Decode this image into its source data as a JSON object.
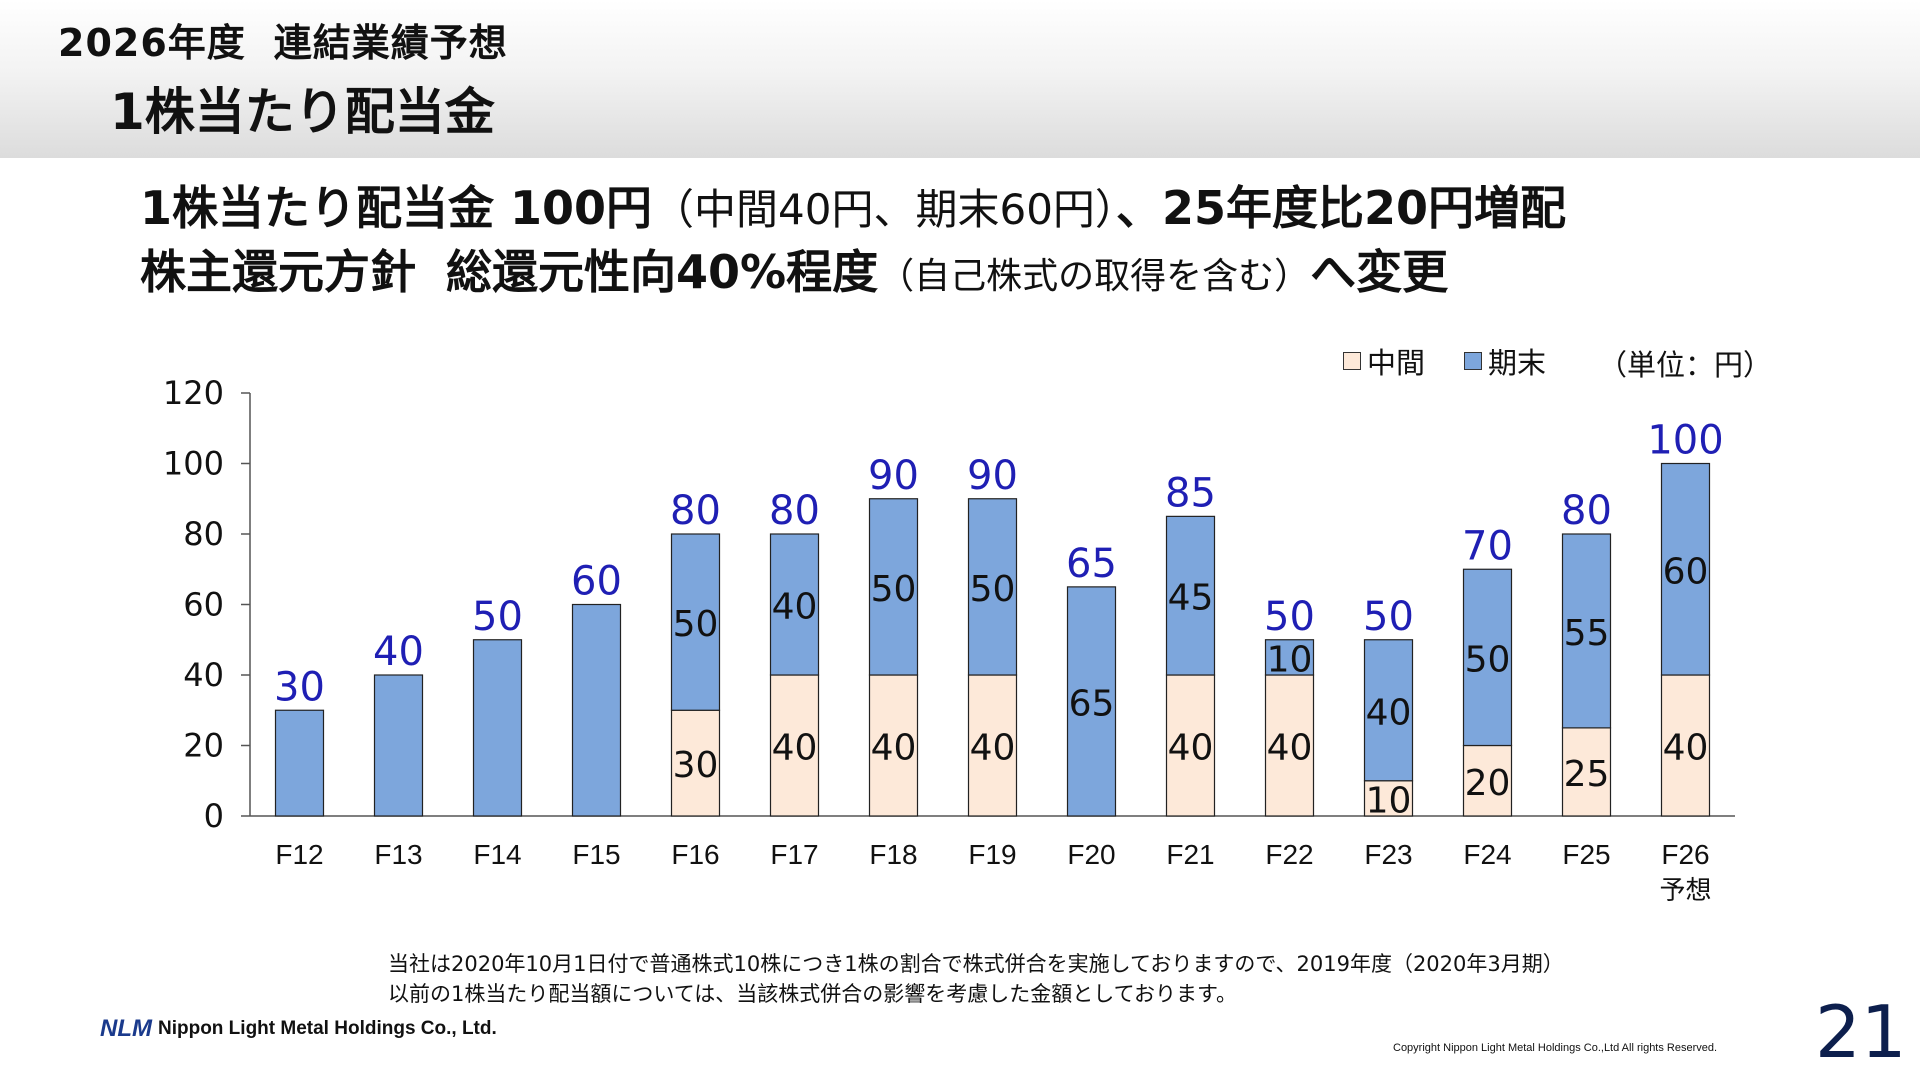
{
  "header": {
    "line1_year": "2026年度",
    "line1_label": "連結業績予想",
    "line2": "1株当たり配当金"
  },
  "headline": {
    "l1_bold1": "1株当たり配当金 100円",
    "l1_thin": "（中間40円、期末60円）",
    "l1_bold2": "、25年度比20円増配",
    "l2_bold1": "株主還元方針",
    "l2_bold2": "総還元性向40%程度",
    "l2_small": "（自己株式の取得を含む）",
    "l2_bold3": "へ変更"
  },
  "colors": {
    "interim": "#fde9d9",
    "year_end": "#7da6dc",
    "total_label": "#1f1fb4",
    "axis": "#555555"
  },
  "legend": {
    "interim": "中間",
    "year_end": "期末",
    "unit": "（単位：円）"
  },
  "chart_data": {
    "type": "bar",
    "stacked": true,
    "categories": [
      "F12",
      "F13",
      "F14",
      "F15",
      "F16",
      "F17",
      "F18",
      "F19",
      "F20",
      "F21",
      "F22",
      "F23",
      "F24",
      "F25",
      "F26"
    ],
    "category_sublabels": [
      "",
      "",
      "",
      "",
      "",
      "",
      "",
      "",
      "",
      "",
      "",
      "",
      "",
      "",
      "予想"
    ],
    "series": [
      {
        "name": "中間",
        "values": [
          0,
          0,
          0,
          0,
          30,
          40,
          40,
          40,
          0,
          40,
          40,
          10,
          20,
          25,
          40
        ],
        "labels": [
          "",
          "",
          "",
          "",
          "30",
          "40",
          "40",
          "40",
          "",
          "40",
          "40",
          "10",
          "20",
          "25",
          "40"
        ]
      },
      {
        "name": "期末",
        "values": [
          30,
          40,
          50,
          60,
          50,
          40,
          50,
          50,
          65,
          45,
          10,
          40,
          50,
          55,
          60
        ],
        "labels": [
          "",
          "",
          "",
          "",
          "50",
          "40",
          "50",
          "50",
          "65",
          "45",
          "10",
          "40",
          "50",
          "55",
          "60"
        ]
      }
    ],
    "totals": [
      30,
      40,
      50,
      60,
      80,
      80,
      90,
      90,
      65,
      85,
      50,
      50,
      70,
      80,
      100
    ],
    "ylim": [
      0,
      120
    ],
    "yticks": [
      0,
      20,
      40,
      60,
      80,
      100,
      120
    ],
    "grid": false,
    "legend_position": "top-right"
  },
  "notes": {
    "line1": "当社は2020年10月1日付で普通株式10株につき1株の割合で株式併合を実施しておりますので、2019年度（2020年3月期）",
    "line2": "以前の1株当たり配当額については、当該株式併合の影響を考慮した金額としております。"
  },
  "footer": {
    "logo_mark": "NLM",
    "company": "Nippon Light Metal Holdings Co., Ltd.",
    "copyright": "Copyright Nippon Light Metal Holdings Co.,Ltd All rights Reserved.",
    "page_number": "21"
  }
}
